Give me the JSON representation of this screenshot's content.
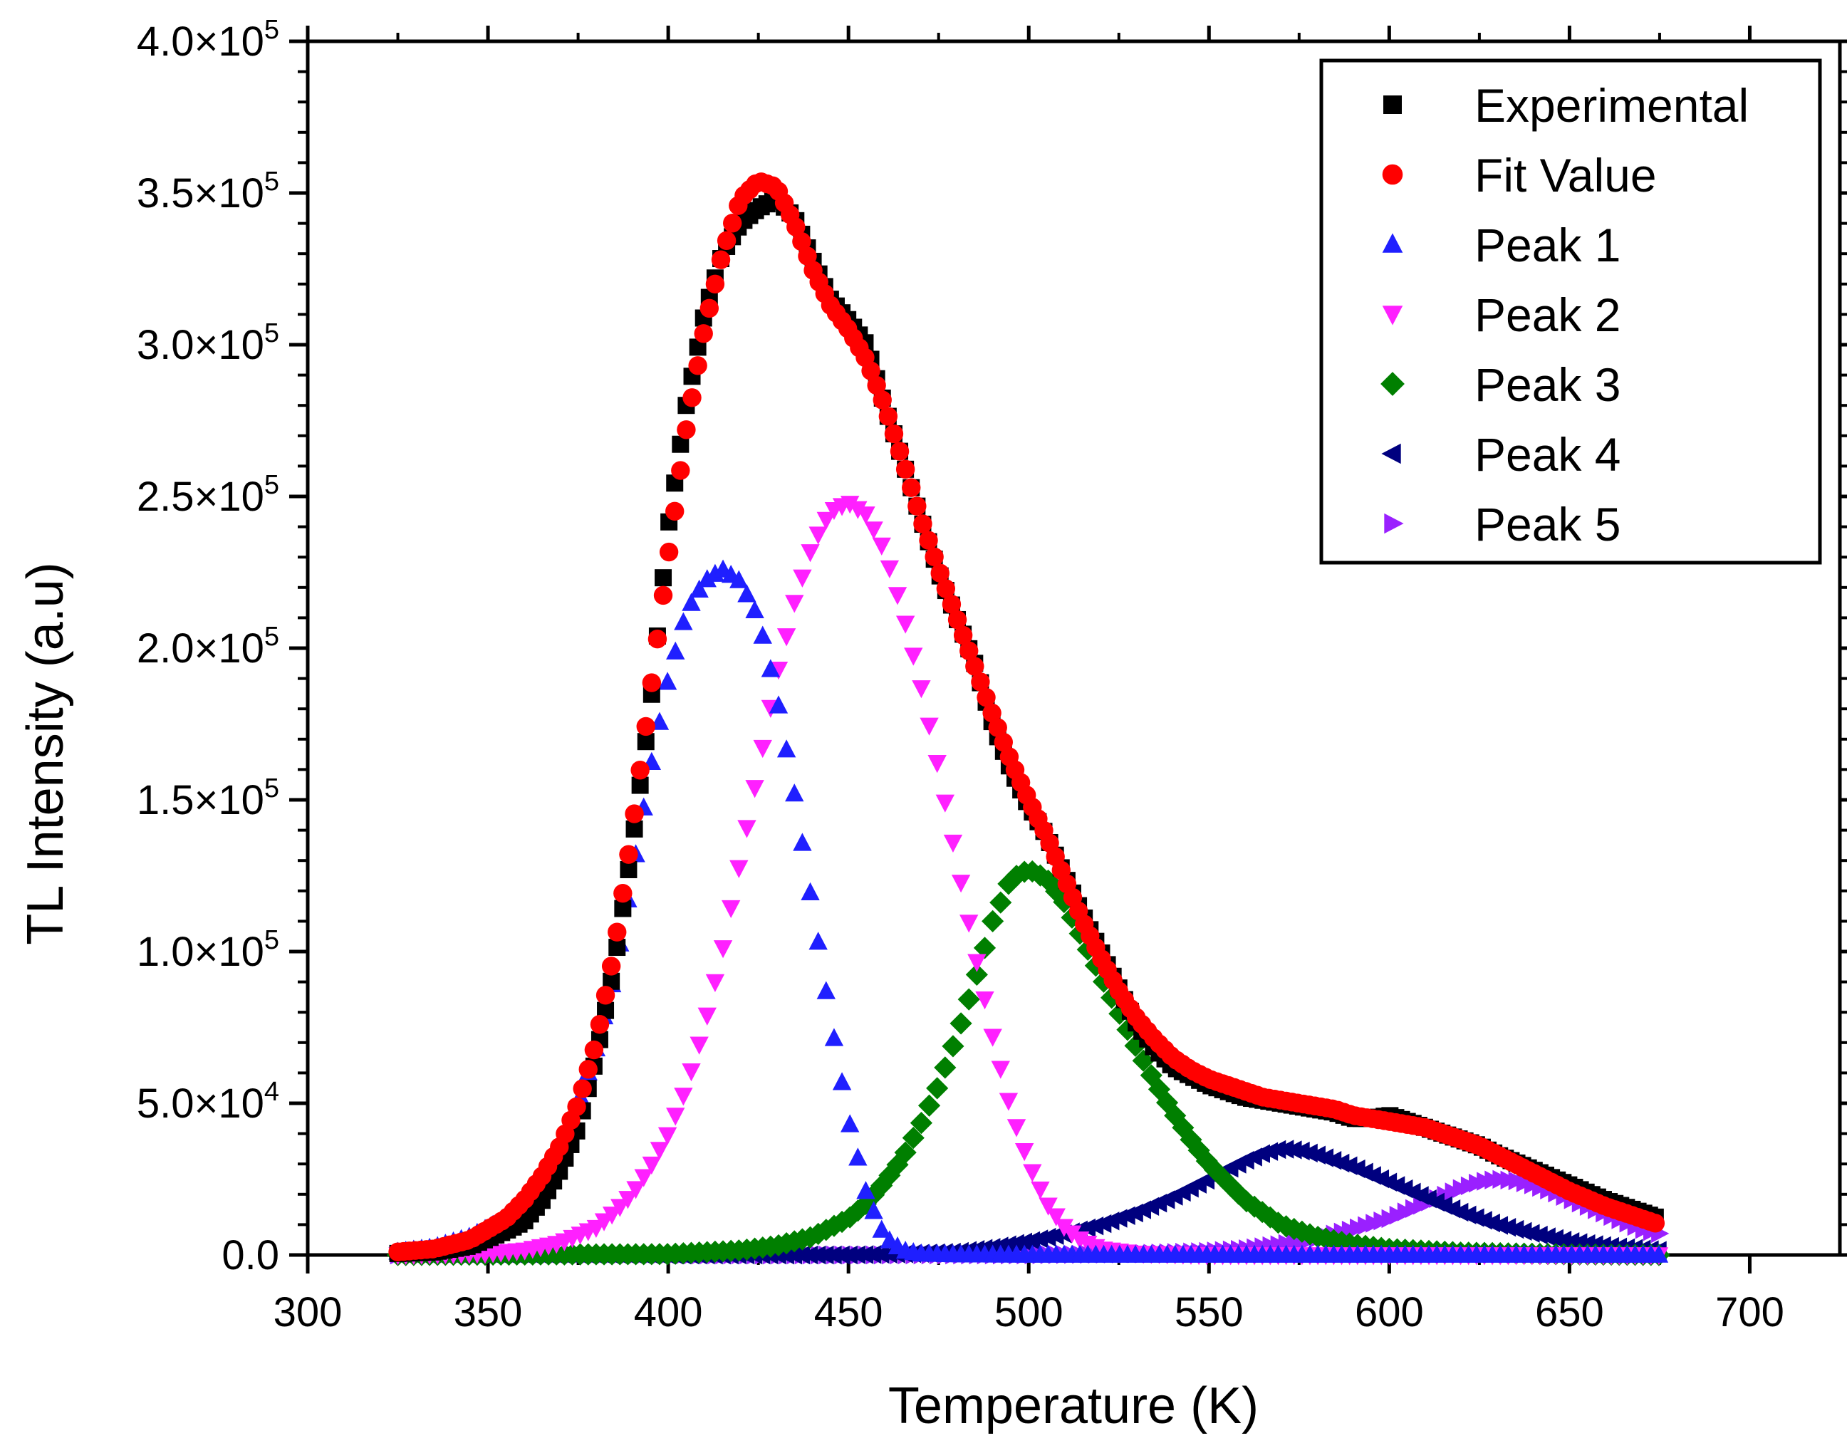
{
  "chart_data": {
    "type": "scatter",
    "xlabel": "Temperature (K)",
    "ylabel": "TL Intensity (a.u)",
    "xlim": [
      300,
      725
    ],
    "ylim": [
      0,
      400000
    ],
    "x_ticks": [
      300,
      350,
      400,
      450,
      500,
      550,
      600,
      650,
      700
    ],
    "x_tick_labels": [
      "300",
      "350",
      "400",
      "450",
      "500",
      "550",
      "600",
      "650",
      "700"
    ],
    "y_ticks": [
      0,
      50000,
      100000,
      150000,
      200000,
      250000,
      300000,
      350000,
      400000
    ],
    "y_tick_labels": [
      {
        "base": "0.0",
        "exp": ""
      },
      {
        "base": "5.0×10",
        "exp": "4"
      },
      {
        "base": "1.0×10",
        "exp": "5"
      },
      {
        "base": "1.5×10",
        "exp": "5"
      },
      {
        "base": "2.0×10",
        "exp": "5"
      },
      {
        "base": "2.5×10",
        "exp": "5"
      },
      {
        "base": "3.0×10",
        "exp": "5"
      },
      {
        "base": "3.5×10",
        "exp": "5"
      },
      {
        "base": "4.0×10",
        "exp": "5"
      }
    ],
    "legend_position": "top-right",
    "series": [
      {
        "name": "Experimental",
        "color": "#000000",
        "marker": "square",
        "points": [
          [
            325,
            500
          ],
          [
            335,
            1000
          ],
          [
            345,
            3000
          ],
          [
            355,
            8000
          ],
          [
            360,
            11000
          ],
          [
            365,
            18000
          ],
          [
            370,
            28000
          ],
          [
            375,
            42000
          ],
          [
            380,
            65000
          ],
          [
            385,
            95000
          ],
          [
            390,
            135000
          ],
          [
            395,
            180000
          ],
          [
            400,
            240000
          ],
          [
            405,
            280000
          ],
          [
            410,
            310000
          ],
          [
            415,
            330000
          ],
          [
            420,
            340000
          ],
          [
            425,
            345000
          ],
          [
            430,
            348000
          ],
          [
            435,
            342000
          ],
          [
            440,
            328000
          ],
          [
            445,
            315000
          ],
          [
            450,
            308000
          ],
          [
            455,
            300000
          ],
          [
            460,
            280000
          ],
          [
            465,
            262000
          ],
          [
            470,
            243000
          ],
          [
            475,
            225000
          ],
          [
            480,
            210000
          ],
          [
            485,
            195000
          ],
          [
            490,
            175000
          ],
          [
            495,
            160000
          ],
          [
            500,
            148000
          ],
          [
            505,
            138000
          ],
          [
            510,
            125000
          ],
          [
            515,
            112000
          ],
          [
            520,
            100000
          ],
          [
            525,
            88000
          ],
          [
            530,
            76000
          ],
          [
            535,
            68000
          ],
          [
            540,
            62000
          ],
          [
            545,
            59000
          ],
          [
            550,
            56000
          ],
          [
            555,
            54000
          ],
          [
            560,
            52000
          ],
          [
            565,
            51000
          ],
          [
            570,
            50000
          ],
          [
            575,
            49000
          ],
          [
            580,
            48000
          ],
          [
            585,
            47000
          ],
          [
            590,
            45000
          ],
          [
            595,
            45000
          ],
          [
            600,
            46000
          ],
          [
            605,
            44000
          ],
          [
            610,
            42000
          ],
          [
            615,
            40000
          ],
          [
            620,
            38000
          ],
          [
            625,
            36000
          ],
          [
            630,
            33000
          ],
          [
            640,
            28000
          ],
          [
            650,
            23000
          ],
          [
            660,
            18000
          ],
          [
            670,
            14000
          ],
          [
            675,
            12000
          ]
        ]
      },
      {
        "name": "Fit Value",
        "color": "#ff0000",
        "marker": "circle",
        "points": [
          [
            325,
            1000
          ],
          [
            335,
            2000
          ],
          [
            345,
            5000
          ],
          [
            355,
            12000
          ],
          [
            360,
            18000
          ],
          [
            365,
            26000
          ],
          [
            370,
            36000
          ],
          [
            375,
            50000
          ],
          [
            380,
            70000
          ],
          [
            385,
            100000
          ],
          [
            390,
            140000
          ],
          [
            395,
            185000
          ],
          [
            400,
            230000
          ],
          [
            405,
            272000
          ],
          [
            410,
            305000
          ],
          [
            415,
            330000
          ],
          [
            420,
            348000
          ],
          [
            425,
            354000
          ],
          [
            430,
            352000
          ],
          [
            435,
            340000
          ],
          [
            440,
            325000
          ],
          [
            445,
            313000
          ],
          [
            450,
            305000
          ],
          [
            455,
            295000
          ],
          [
            460,
            280000
          ],
          [
            465,
            262000
          ],
          [
            470,
            243000
          ],
          [
            475,
            226000
          ],
          [
            480,
            210000
          ],
          [
            485,
            194000
          ],
          [
            490,
            178000
          ],
          [
            495,
            163000
          ],
          [
            500,
            150000
          ],
          [
            505,
            138000
          ],
          [
            510,
            124000
          ],
          [
            515,
            110000
          ],
          [
            520,
            98000
          ],
          [
            525,
            87000
          ],
          [
            530,
            78000
          ],
          [
            535,
            71000
          ],
          [
            540,
            65000
          ],
          [
            545,
            61000
          ],
          [
            550,
            58000
          ],
          [
            555,
            56000
          ],
          [
            560,
            54000
          ],
          [
            565,
            52000
          ],
          [
            570,
            51000
          ],
          [
            575,
            50000
          ],
          [
            580,
            49000
          ],
          [
            585,
            48000
          ],
          [
            590,
            46000
          ],
          [
            595,
            45000
          ],
          [
            600,
            44000
          ],
          [
            605,
            43000
          ],
          [
            610,
            42000
          ],
          [
            615,
            40000
          ],
          [
            620,
            38000
          ],
          [
            625,
            36000
          ],
          [
            630,
            33000
          ],
          [
            640,
            27000
          ],
          [
            650,
            21000
          ],
          [
            660,
            16000
          ],
          [
            670,
            12000
          ],
          [
            675,
            10000
          ]
        ]
      },
      {
        "name": "Peak 1",
        "color": "#1f1fff",
        "marker": "triangle-up",
        "points": [
          [
            325,
            1000
          ],
          [
            335,
            2500
          ],
          [
            345,
            6000
          ],
          [
            355,
            12000
          ],
          [
            360,
            17000
          ],
          [
            365,
            25000
          ],
          [
            370,
            35000
          ],
          [
            375,
            50000
          ],
          [
            380,
            68000
          ],
          [
            385,
            92000
          ],
          [
            390,
            125000
          ],
          [
            395,
            160000
          ],
          [
            400,
            190000
          ],
          [
            405,
            212000
          ],
          [
            410,
            222000
          ],
          [
            415,
            226000
          ],
          [
            420,
            222000
          ],
          [
            425,
            210000
          ],
          [
            430,
            185000
          ],
          [
            435,
            152000
          ],
          [
            440,
            115000
          ],
          [
            445,
            78000
          ],
          [
            450,
            45000
          ],
          [
            455,
            20000
          ],
          [
            460,
            6000
          ],
          [
            465,
            1500
          ],
          [
            470,
            400
          ],
          [
            480,
            100
          ],
          [
            500,
            0
          ],
          [
            550,
            0
          ],
          [
            600,
            0
          ],
          [
            650,
            0
          ],
          [
            675,
            0
          ]
        ]
      },
      {
        "name": "Peak 2",
        "color": "#ff20ff",
        "marker": "triangle-down",
        "points": [
          [
            325,
            0
          ],
          [
            350,
            500
          ],
          [
            360,
            1500
          ],
          [
            370,
            4000
          ],
          [
            380,
            9000
          ],
          [
            385,
            14000
          ],
          [
            390,
            20000
          ],
          [
            395,
            29000
          ],
          [
            400,
            40000
          ],
          [
            405,
            55000
          ],
          [
            410,
            75000
          ],
          [
            415,
            100000
          ],
          [
            420,
            130000
          ],
          [
            425,
            160000
          ],
          [
            430,
            190000
          ],
          [
            435,
            215000
          ],
          [
            440,
            234000
          ],
          [
            445,
            245000
          ],
          [
            450,
            248000
          ],
          [
            455,
            244000
          ],
          [
            460,
            232000
          ],
          [
            465,
            212000
          ],
          [
            470,
            188000
          ],
          [
            475,
            160000
          ],
          [
            480,
            130000
          ],
          [
            485,
            100000
          ],
          [
            490,
            72000
          ],
          [
            495,
            48000
          ],
          [
            500,
            30000
          ],
          [
            505,
            17000
          ],
          [
            510,
            9000
          ],
          [
            515,
            4500
          ],
          [
            520,
            2000
          ],
          [
            530,
            500
          ],
          [
            550,
            0
          ],
          [
            600,
            0
          ],
          [
            650,
            0
          ],
          [
            675,
            0
          ]
        ]
      },
      {
        "name": "Peak 3",
        "color": "#007f00",
        "marker": "diamond",
        "points": [
          [
            325,
            0
          ],
          [
            400,
            300
          ],
          [
            420,
            1500
          ],
          [
            430,
            3000
          ],
          [
            440,
            6000
          ],
          [
            450,
            12000
          ],
          [
            455,
            17000
          ],
          [
            460,
            24000
          ],
          [
            465,
            32000
          ],
          [
            470,
            43000
          ],
          [
            475,
            56000
          ],
          [
            480,
            72000
          ],
          [
            485,
            90000
          ],
          [
            490,
            110000
          ],
          [
            495,
            124000
          ],
          [
            500,
            127000
          ],
          [
            505,
            124000
          ],
          [
            510,
            116000
          ],
          [
            515,
            104000
          ],
          [
            520,
            92000
          ],
          [
            525,
            80000
          ],
          [
            530,
            68000
          ],
          [
            535,
            57000
          ],
          [
            540,
            47000
          ],
          [
            545,
            38000
          ],
          [
            550,
            30000
          ],
          [
            555,
            24000
          ],
          [
            560,
            18000
          ],
          [
            565,
            14000
          ],
          [
            570,
            10000
          ],
          [
            580,
            6000
          ],
          [
            590,
            3500
          ],
          [
            600,
            2000
          ],
          [
            620,
            800
          ],
          [
            650,
            200
          ],
          [
            675,
            0
          ]
        ]
      },
      {
        "name": "Peak 4",
        "color": "#00007f",
        "marker": "triangle-left",
        "points": [
          [
            325,
            0
          ],
          [
            450,
            0
          ],
          [
            470,
            500
          ],
          [
            480,
            1000
          ],
          [
            490,
            2500
          ],
          [
            500,
            4500
          ],
          [
            510,
            7000
          ],
          [
            520,
            10000
          ],
          [
            530,
            14000
          ],
          [
            540,
            19000
          ],
          [
            550,
            25000
          ],
          [
            555,
            28000
          ],
          [
            560,
            31000
          ],
          [
            565,
            33500
          ],
          [
            570,
            35000
          ],
          [
            575,
            34500
          ],
          [
            580,
            33000
          ],
          [
            590,
            29000
          ],
          [
            600,
            24000
          ],
          [
            610,
            19000
          ],
          [
            620,
            14000
          ],
          [
            630,
            10000
          ],
          [
            640,
            7000
          ],
          [
            650,
            4500
          ],
          [
            660,
            3000
          ],
          [
            675,
            1500
          ]
        ]
      },
      {
        "name": "Peak 5",
        "color": "#9a20ff",
        "marker": "triangle-right",
        "points": [
          [
            325,
            0
          ],
          [
            500,
            0
          ],
          [
            530,
            400
          ],
          [
            550,
            1200
          ],
          [
            560,
            2000
          ],
          [
            570,
            3500
          ],
          [
            580,
            5500
          ],
          [
            590,
            8500
          ],
          [
            600,
            12000
          ],
          [
            605,
            14500
          ],
          [
            610,
            17000
          ],
          [
            615,
            19500
          ],
          [
            620,
            22000
          ],
          [
            625,
            24000
          ],
          [
            630,
            25000
          ],
          [
            635,
            24500
          ],
          [
            640,
            23000
          ],
          [
            645,
            21000
          ],
          [
            650,
            18500
          ],
          [
            655,
            16000
          ],
          [
            660,
            13500
          ],
          [
            665,
            11000
          ],
          [
            670,
            8500
          ],
          [
            675,
            7000
          ]
        ]
      }
    ]
  }
}
